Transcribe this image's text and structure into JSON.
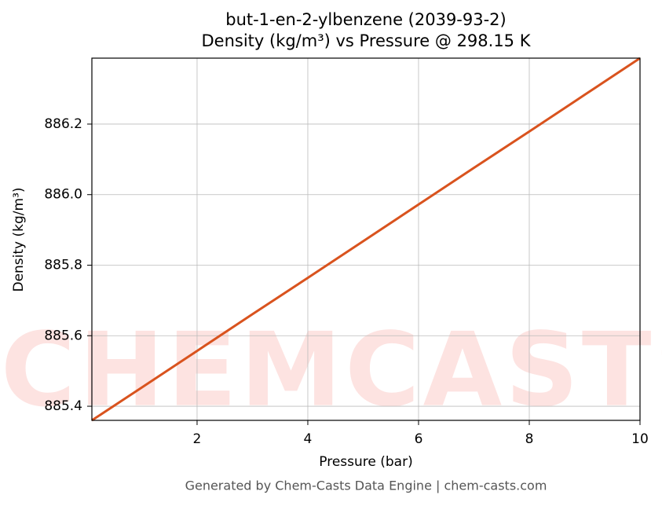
{
  "chart_data": {
    "type": "line",
    "title": "but-1-en-2-ylbenzene (2039-93-2)",
    "subtitle": "Density (kg/m³) vs Pressure @ 298.15 K",
    "x_label": "Pressure (bar)",
    "y_label": "Density (kg/m³)",
    "x": [
      0.1,
      1,
      2,
      3,
      4,
      5,
      6,
      7,
      8,
      9,
      10
    ],
    "series": [
      {
        "name": "Density",
        "color": "#d9531e",
        "values": [
          885.36,
          885.453,
          885.557,
          885.661,
          885.764,
          885.868,
          885.972,
          886.076,
          886.179,
          886.283,
          886.387
        ]
      }
    ],
    "xlim": [
      0.1,
      10
    ],
    "ylim": [
      885.36,
      886.387
    ],
    "xticks": [
      2,
      4,
      6,
      8,
      10
    ],
    "yticks": [
      885.4,
      885.6,
      885.8,
      {
        "value": 886,
        "label": "886.0"
      },
      886.2
    ],
    "grid": true,
    "watermark": "CHEMCASTS",
    "footer": "Generated by Chem-Casts Data Engine | chem-casts.com"
  }
}
